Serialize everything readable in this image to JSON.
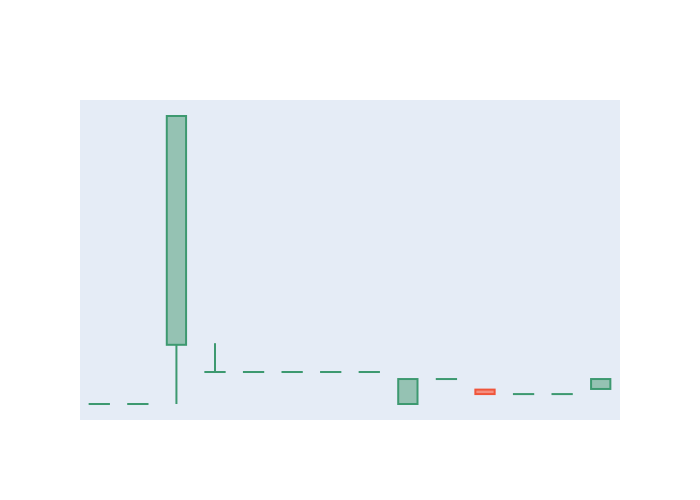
{
  "chart_data": {
    "type": "candlestick",
    "title": "",
    "xlabel": "",
    "ylabel": "",
    "grid": false,
    "legend": "none",
    "colors": {
      "plot_background": "#e5ecf6",
      "paper_background": "#ffffff",
      "increasing_line": "#3d9970",
      "increasing_fill": "#95c2b3",
      "decreasing_line": "#ef553b",
      "decreasing_fill": "#f58e7f"
    },
    "ylim": [
      0,
      100
    ],
    "candles": [
      {
        "open": 5.0,
        "high": 5.0,
        "low": 5.0,
        "close": 5.0
      },
      {
        "open": 5.0,
        "high": 5.0,
        "low": 5.0,
        "close": 5.0
      },
      {
        "open": 23.5,
        "high": 95.0,
        "low": 5.0,
        "close": 95.0
      },
      {
        "open": 15.0,
        "high": 24.0,
        "low": 15.0,
        "close": 15.0
      },
      {
        "open": 15.0,
        "high": 15.0,
        "low": 15.0,
        "close": 15.0
      },
      {
        "open": 15.0,
        "high": 15.0,
        "low": 15.0,
        "close": 15.0
      },
      {
        "open": 15.0,
        "high": 15.0,
        "low": 15.0,
        "close": 15.0
      },
      {
        "open": 15.0,
        "high": 15.0,
        "low": 15.0,
        "close": 15.0
      },
      {
        "open": 5.0,
        "high": 12.8,
        "low": 5.0,
        "close": 12.8
      },
      {
        "open": 12.8,
        "high": 12.8,
        "low": 12.8,
        "close": 12.8
      },
      {
        "open": 9.5,
        "high": 9.5,
        "low": 8.1,
        "close": 8.1
      },
      {
        "open": 8.1,
        "high": 8.1,
        "low": 8.1,
        "close": 8.1
      },
      {
        "open": 8.1,
        "high": 8.1,
        "low": 8.1,
        "close": 8.1
      },
      {
        "open": 9.7,
        "high": 12.8,
        "low": 9.7,
        "close": 12.8
      }
    ]
  }
}
